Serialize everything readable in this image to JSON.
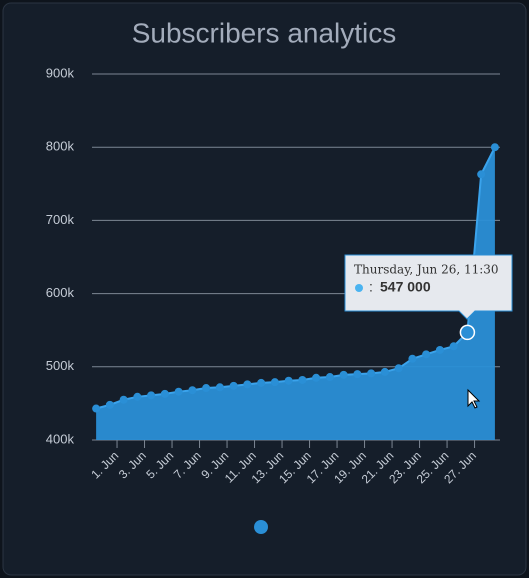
{
  "chart_data": {
    "type": "area",
    "title": "Subscribers analytics",
    "x": [
      -0.52,
      0.48,
      1.48,
      2.48,
      3.48,
      4.48,
      5.48,
      6.48,
      7.48,
      8.48,
      9.48,
      10.48,
      11.48,
      12.48,
      13.48,
      14.48,
      15.48,
      16.48,
      17.48,
      18.48,
      19.48,
      20.48,
      21.48,
      22.48,
      23.48,
      24.48,
      25.48,
      26.48,
      27.48,
      28.48
    ],
    "series": [
      {
        "color": "#2a8fd6",
        "values": [
          443000,
          448000,
          455000,
          459000,
          461000,
          463000,
          466000,
          468000,
          471000,
          472000,
          474000,
          476000,
          478000,
          479000,
          481000,
          482000,
          485000,
          486000,
          489000,
          490000,
          491000,
          493000,
          498000,
          511000,
          517000,
          523000,
          528000,
          547000,
          763000,
          800000
        ]
      }
    ],
    "xlim": [
      -0.82,
      28.85
    ],
    "xticks": [
      {
        "value": 1,
        "label": "1. Jun"
      },
      {
        "value": 3,
        "label": "3. Jun"
      },
      {
        "value": 5,
        "label": "5. Jun"
      },
      {
        "value": 7,
        "label": "7. Jun"
      },
      {
        "value": 9,
        "label": "9. Jun"
      },
      {
        "value": 11,
        "label": "11. Jun"
      },
      {
        "value": 13,
        "label": "13. Jun"
      },
      {
        "value": 15,
        "label": "15. Jun"
      },
      {
        "value": 17,
        "label": "17. Jun"
      },
      {
        "value": 19,
        "label": "19. Jun"
      },
      {
        "value": 21,
        "label": "21. Jun"
      },
      {
        "value": 23,
        "label": "23. Jun"
      },
      {
        "value": 25,
        "label": "25. Jun"
      },
      {
        "value": 27,
        "label": "27. Jun"
      }
    ],
    "ylim": [
      400000,
      900000
    ],
    "yticks": [
      {
        "value": 400000,
        "label": "400k"
      },
      {
        "value": 500000,
        "label": "500k"
      },
      {
        "value": 600000,
        "label": "600k"
      },
      {
        "value": 700000,
        "label": "700k"
      },
      {
        "value": 800000,
        "label": "800k"
      },
      {
        "value": 900000,
        "label": "900k"
      }
    ],
    "grid": true,
    "tooltip": {
      "header": "Thursday, Jun 26, 11:30",
      "prefix": ":",
      "value": "547 000",
      "index": 27
    }
  }
}
